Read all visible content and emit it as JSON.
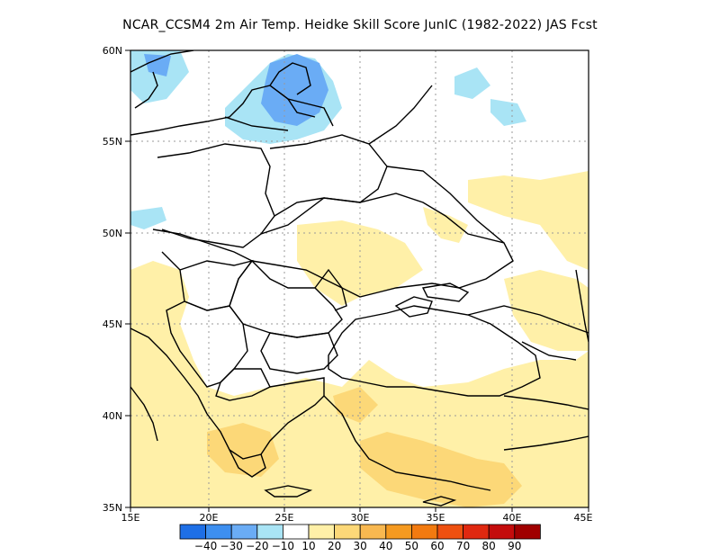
{
  "title": "NCAR_CCSM4  2m Air Temp. Heidke Skill Score JunIC (1982-2022) JAS Fcst",
  "lat_labels": [
    "60N",
    "55N",
    "50N",
    "45N",
    "40N",
    "35N"
  ],
  "lon_labels": [
    "15E",
    "20E",
    "25E",
    "30E",
    "35E",
    "40E",
    "45E"
  ],
  "extent": {
    "lon": [
      15,
      45
    ],
    "lat": [
      35,
      60
    ]
  },
  "colorbar": {
    "labels": [
      "-40",
      "-30",
      "-20",
      "-10",
      "10",
      "20",
      "30",
      "40",
      "50",
      "60",
      "70",
      "80",
      "90"
    ],
    "colors": [
      "#1e6fe6",
      "#3d8ff0",
      "#6aacf5",
      "#a9e4f5",
      "#ffffff",
      "#fff0a8",
      "#fcd878",
      "#f8b850",
      "#f59a20",
      "#f27a10",
      "#ee5010",
      "#e02810",
      "#c40c0c",
      "#a00000"
    ]
  },
  "colors": {
    "cool_light": "#a9e4f5",
    "cool_mid": "#6aacf5",
    "warm_light": "#fff0a8",
    "warm_mid": "#fcd878",
    "border": "#000000",
    "grid": "#999999"
  }
}
